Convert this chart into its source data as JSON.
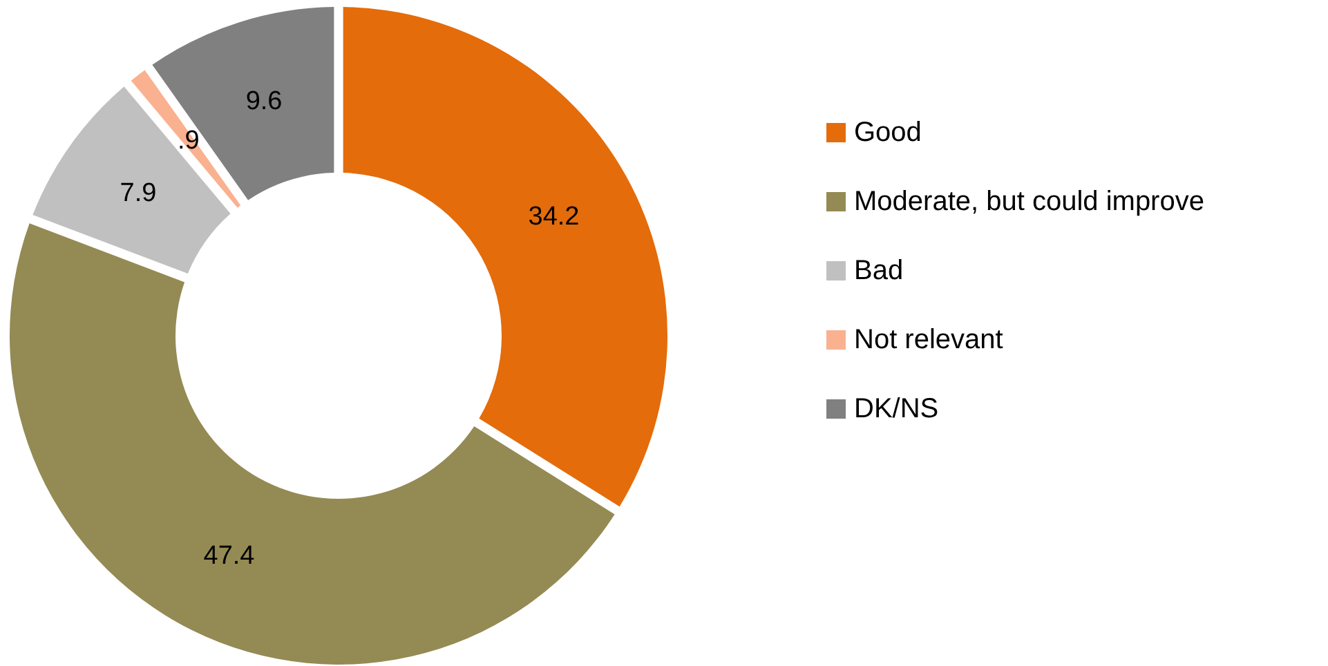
{
  "chart_data": {
    "type": "donut",
    "categories": [
      "Good",
      "Moderate, but could improve",
      "Bad",
      "Not relevant",
      "DK/NS"
    ],
    "values": [
      34.2,
      47.4,
      7.9,
      0.9,
      9.6
    ],
    "colors": [
      "#e46c0a",
      "#948a54",
      "#c0c0c0",
      "#f9b190",
      "#808080"
    ],
    "value_labels": [
      "34.2",
      "47.4",
      "7.9",
      ".9",
      "9.6"
    ],
    "legend": "right"
  }
}
